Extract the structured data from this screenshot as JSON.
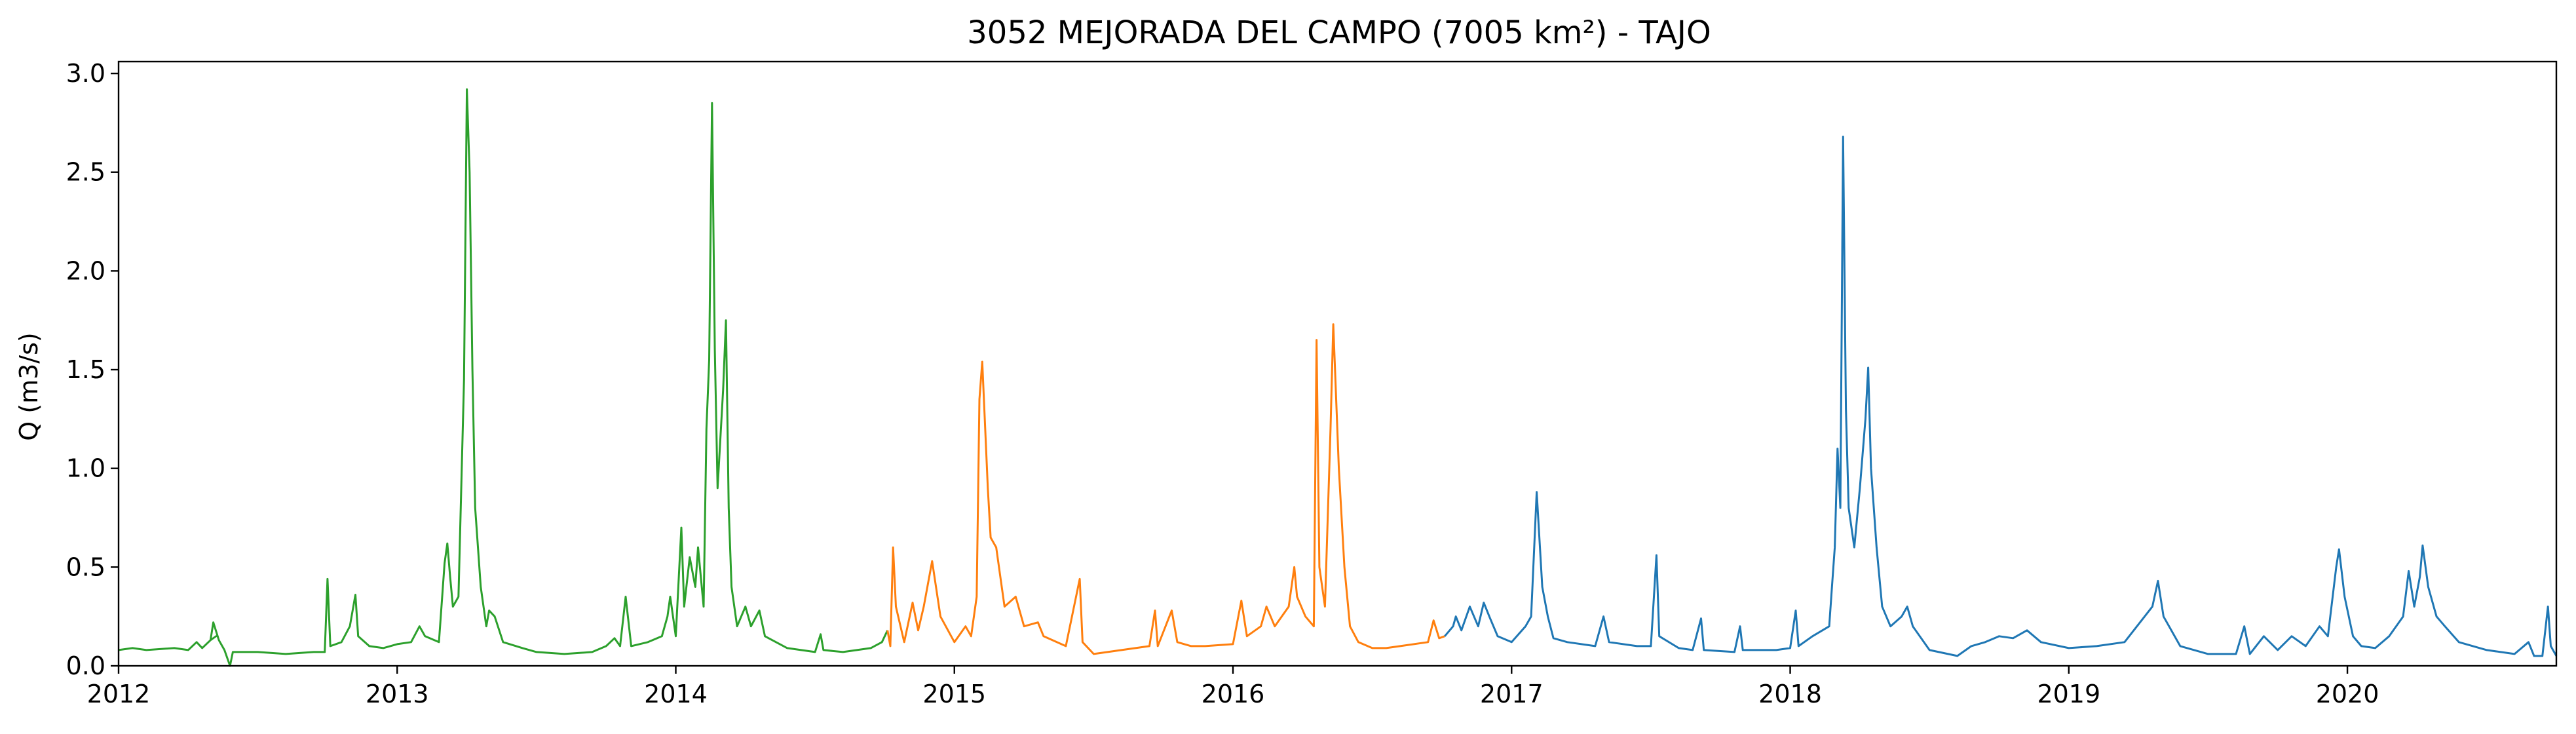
{
  "chart_data": {
    "type": "line",
    "title": "3052 MEJORADA DEL CAMPO (7005 km²) - TAJO",
    "xlabel": "",
    "ylabel": "Q (m3/s)",
    "xlim": [
      2012.0,
      2020.75
    ],
    "ylim": [
      0.0,
      3.06
    ],
    "x_ticks": [
      "2012",
      "2013",
      "2014",
      "2015",
      "2016",
      "2017",
      "2018",
      "2019",
      "2020"
    ],
    "y_ticks": [
      "0.0",
      "0.5",
      "1.0",
      "1.5",
      "2.0",
      "2.5",
      "3.0"
    ],
    "grid": false,
    "legend": "none",
    "colors": {
      "series_1": "#2ca02c",
      "series_2": "#ff7f0e",
      "series_3": "#1f77b4"
    },
    "series": [
      {
        "points": [
          [
            2012.0,
            0.08
          ],
          [
            2012.05,
            0.09
          ],
          [
            2012.1,
            0.08
          ],
          [
            2012.2,
            0.09
          ],
          [
            2012.25,
            0.08
          ],
          [
            2012.28,
            0.12
          ],
          [
            2012.3,
            0.09
          ],
          [
            2012.33,
            0.13
          ],
          [
            2012.35,
            0.15
          ],
          [
            2012.33,
            0.13
          ],
          [
            2012.34,
            0.22
          ],
          [
            2012.36,
            0.13
          ],
          [
            2012.38,
            0.08
          ],
          [
            2012.4,
            0.0
          ],
          [
            2012.41,
            0.07
          ],
          [
            2012.5,
            0.07
          ],
          [
            2012.6,
            0.06
          ],
          [
            2012.7,
            0.07
          ],
          [
            2012.74,
            0.07
          ],
          [
            2012.75,
            0.44
          ],
          [
            2012.76,
            0.1
          ],
          [
            2012.8,
            0.12
          ],
          [
            2012.83,
            0.2
          ],
          [
            2012.85,
            0.36
          ],
          [
            2012.86,
            0.15
          ],
          [
            2012.9,
            0.1
          ],
          [
            2012.95,
            0.09
          ],
          [
            2013.0,
            0.11
          ],
          [
            2013.05,
            0.12
          ],
          [
            2013.08,
            0.2
          ],
          [
            2013.1,
            0.15
          ],
          [
            2013.15,
            0.12
          ],
          [
            2013.17,
            0.52
          ],
          [
            2013.18,
            0.62
          ],
          [
            2013.19,
            0.45
          ],
          [
            2013.2,
            0.3
          ],
          [
            2013.22,
            0.35
          ],
          [
            2013.24,
            1.45
          ],
          [
            2013.25,
            2.92
          ],
          [
            2013.26,
            2.5
          ],
          [
            2013.27,
            1.5
          ],
          [
            2013.28,
            0.8
          ],
          [
            2013.3,
            0.4
          ],
          [
            2013.32,
            0.2
          ],
          [
            2013.33,
            0.28
          ],
          [
            2013.35,
            0.25
          ],
          [
            2013.38,
            0.12
          ],
          [
            2013.45,
            0.09
          ],
          [
            2013.5,
            0.07
          ],
          [
            2013.6,
            0.06
          ],
          [
            2013.7,
            0.07
          ],
          [
            2013.75,
            0.1
          ],
          [
            2013.78,
            0.14
          ],
          [
            2013.8,
            0.1
          ],
          [
            2013.82,
            0.35
          ],
          [
            2013.84,
            0.1
          ],
          [
            2013.9,
            0.12
          ],
          [
            2013.95,
            0.15
          ],
          [
            2013.97,
            0.25
          ],
          [
            2013.98,
            0.35
          ],
          [
            2014.0,
            0.15
          ],
          [
            2014.02,
            0.7
          ],
          [
            2014.03,
            0.3
          ],
          [
            2014.05,
            0.55
          ],
          [
            2014.07,
            0.4
          ],
          [
            2014.08,
            0.6
          ],
          [
            2014.1,
            0.3
          ],
          [
            2014.11,
            1.2
          ],
          [
            2014.12,
            1.55
          ],
          [
            2014.13,
            2.85
          ],
          [
            2014.14,
            1.6
          ],
          [
            2014.15,
            0.9
          ],
          [
            2014.17,
            1.4
          ],
          [
            2014.18,
            1.75
          ],
          [
            2014.19,
            0.8
          ],
          [
            2014.2,
            0.4
          ],
          [
            2014.22,
            0.2
          ],
          [
            2014.25,
            0.3
          ],
          [
            2014.27,
            0.2
          ],
          [
            2014.3,
            0.28
          ],
          [
            2014.32,
            0.15
          ],
          [
            2014.4,
            0.09
          ],
          [
            2014.5,
            0.07
          ],
          [
            2014.52,
            0.16
          ],
          [
            2014.53,
            0.08
          ],
          [
            2014.6,
            0.07
          ],
          [
            2014.7,
            0.09
          ],
          [
            2014.74,
            0.12
          ],
          [
            2014.76,
            0.18
          ]
        ]
      },
      {
        "points": [
          [
            2014.76,
            0.18
          ],
          [
            2014.77,
            0.1
          ],
          [
            2014.78,
            0.6
          ],
          [
            2014.79,
            0.3
          ],
          [
            2014.82,
            0.12
          ],
          [
            2014.85,
            0.32
          ],
          [
            2014.87,
            0.18
          ],
          [
            2014.89,
            0.3
          ],
          [
            2014.92,
            0.53
          ],
          [
            2014.95,
            0.25
          ],
          [
            2015.0,
            0.12
          ],
          [
            2015.04,
            0.2
          ],
          [
            2015.06,
            0.15
          ],
          [
            2015.08,
            0.35
          ],
          [
            2015.09,
            1.35
          ],
          [
            2015.1,
            1.54
          ],
          [
            2015.12,
            0.9
          ],
          [
            2015.13,
            0.65
          ],
          [
            2015.15,
            0.6
          ],
          [
            2015.18,
            0.3
          ],
          [
            2015.22,
            0.35
          ],
          [
            2015.25,
            0.2
          ],
          [
            2015.3,
            0.22
          ],
          [
            2015.32,
            0.15
          ],
          [
            2015.4,
            0.1
          ],
          [
            2015.45,
            0.44
          ],
          [
            2015.46,
            0.12
          ],
          [
            2015.5,
            0.06
          ],
          [
            2015.6,
            0.08
          ],
          [
            2015.7,
            0.1
          ],
          [
            2015.72,
            0.28
          ],
          [
            2015.73,
            0.1
          ],
          [
            2015.78,
            0.28
          ],
          [
            2015.8,
            0.12
          ],
          [
            2015.85,
            0.1
          ],
          [
            2015.9,
            0.1
          ],
          [
            2016.0,
            0.11
          ],
          [
            2016.03,
            0.33
          ],
          [
            2016.05,
            0.15
          ],
          [
            2016.1,
            0.2
          ],
          [
            2016.12,
            0.3
          ],
          [
            2016.15,
            0.2
          ],
          [
            2016.2,
            0.3
          ],
          [
            2016.22,
            0.5
          ],
          [
            2016.23,
            0.35
          ],
          [
            2016.26,
            0.25
          ],
          [
            2016.29,
            0.2
          ],
          [
            2016.3,
            1.65
          ],
          [
            2016.31,
            0.5
          ],
          [
            2016.33,
            0.3
          ],
          [
            2016.35,
            1.2
          ],
          [
            2016.36,
            1.73
          ],
          [
            2016.38,
            1.0
          ],
          [
            2016.4,
            0.5
          ],
          [
            2016.42,
            0.2
          ],
          [
            2016.45,
            0.12
          ],
          [
            2016.5,
            0.09
          ],
          [
            2016.55,
            0.09
          ],
          [
            2016.6,
            0.1
          ],
          [
            2016.7,
            0.12
          ],
          [
            2016.72,
            0.23
          ],
          [
            2016.74,
            0.14
          ],
          [
            2016.76,
            0.15
          ]
        ]
      },
      {
        "points": [
          [
            2016.76,
            0.15
          ],
          [
            2016.79,
            0.2
          ],
          [
            2016.8,
            0.25
          ],
          [
            2016.82,
            0.18
          ],
          [
            2016.85,
            0.3
          ],
          [
            2016.88,
            0.2
          ],
          [
            2016.9,
            0.32
          ],
          [
            2016.92,
            0.25
          ],
          [
            2016.95,
            0.15
          ],
          [
            2017.0,
            0.12
          ],
          [
            2017.05,
            0.2
          ],
          [
            2017.07,
            0.25
          ],
          [
            2017.09,
            0.88
          ],
          [
            2017.11,
            0.4
          ],
          [
            2017.13,
            0.25
          ],
          [
            2017.15,
            0.14
          ],
          [
            2017.2,
            0.12
          ],
          [
            2017.3,
            0.1
          ],
          [
            2017.33,
            0.25
          ],
          [
            2017.35,
            0.12
          ],
          [
            2017.45,
            0.1
          ],
          [
            2017.5,
            0.1
          ],
          [
            2017.52,
            0.56
          ],
          [
            2017.53,
            0.15
          ],
          [
            2017.6,
            0.09
          ],
          [
            2017.65,
            0.08
          ],
          [
            2017.68,
            0.24
          ],
          [
            2017.69,
            0.08
          ],
          [
            2017.8,
            0.07
          ],
          [
            2017.82,
            0.2
          ],
          [
            2017.83,
            0.08
          ],
          [
            2017.95,
            0.08
          ],
          [
            2018.0,
            0.09
          ],
          [
            2018.02,
            0.28
          ],
          [
            2018.03,
            0.1
          ],
          [
            2018.08,
            0.15
          ],
          [
            2018.14,
            0.2
          ],
          [
            2018.15,
            0.4
          ],
          [
            2018.16,
            0.6
          ],
          [
            2018.17,
            1.1
          ],
          [
            2018.18,
            0.8
          ],
          [
            2018.19,
            2.68
          ],
          [
            2018.2,
            1.3
          ],
          [
            2018.21,
            0.8
          ],
          [
            2018.23,
            0.6
          ],
          [
            2018.25,
            0.9
          ],
          [
            2018.27,
            1.25
          ],
          [
            2018.28,
            1.51
          ],
          [
            2018.29,
            1.0
          ],
          [
            2018.31,
            0.6
          ],
          [
            2018.33,
            0.3
          ],
          [
            2018.36,
            0.2
          ],
          [
            2018.4,
            0.25
          ],
          [
            2018.42,
            0.3
          ],
          [
            2018.44,
            0.2
          ],
          [
            2018.5,
            0.08
          ],
          [
            2018.6,
            0.05
          ],
          [
            2018.65,
            0.1
          ],
          [
            2018.7,
            0.12
          ],
          [
            2018.75,
            0.15
          ],
          [
            2018.8,
            0.14
          ],
          [
            2018.85,
            0.18
          ],
          [
            2018.9,
            0.12
          ],
          [
            2019.0,
            0.09
          ],
          [
            2019.1,
            0.1
          ],
          [
            2019.2,
            0.12
          ],
          [
            2019.3,
            0.3
          ],
          [
            2019.32,
            0.43
          ],
          [
            2019.34,
            0.25
          ],
          [
            2019.4,
            0.1
          ],
          [
            2019.5,
            0.06
          ],
          [
            2019.6,
            0.06
          ],
          [
            2019.63,
            0.2
          ],
          [
            2019.65,
            0.06
          ],
          [
            2019.7,
            0.15
          ],
          [
            2019.75,
            0.08
          ],
          [
            2019.8,
            0.15
          ],
          [
            2019.85,
            0.1
          ],
          [
            2019.9,
            0.2
          ],
          [
            2019.93,
            0.15
          ],
          [
            2019.96,
            0.5
          ],
          [
            2019.97,
            0.59
          ],
          [
            2019.99,
            0.35
          ],
          [
            2020.02,
            0.15
          ],
          [
            2020.05,
            0.1
          ],
          [
            2020.1,
            0.09
          ],
          [
            2020.15,
            0.15
          ],
          [
            2020.2,
            0.25
          ],
          [
            2020.22,
            0.48
          ],
          [
            2020.24,
            0.3
          ],
          [
            2020.26,
            0.45
          ],
          [
            2020.27,
            0.61
          ],
          [
            2020.29,
            0.4
          ],
          [
            2020.32,
            0.25
          ],
          [
            2020.35,
            0.2
          ],
          [
            2020.4,
            0.12
          ],
          [
            2020.5,
            0.08
          ],
          [
            2020.6,
            0.06
          ],
          [
            2020.65,
            0.12
          ],
          [
            2020.67,
            0.05
          ],
          [
            2020.7,
            0.05
          ],
          [
            2020.72,
            0.3
          ],
          [
            2020.73,
            0.1
          ],
          [
            2020.75,
            0.05
          ]
        ]
      }
    ]
  }
}
